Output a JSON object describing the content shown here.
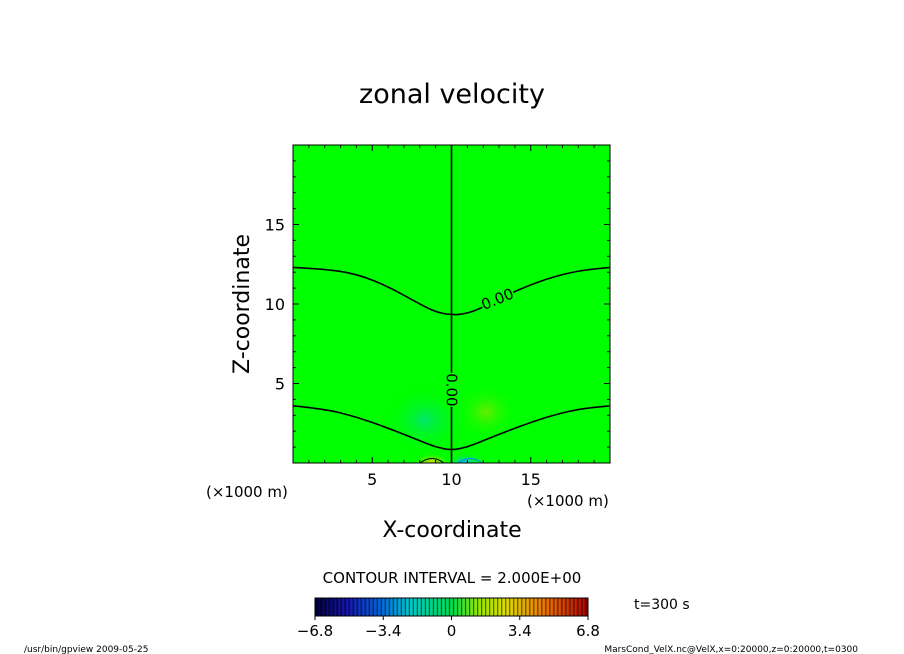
{
  "chart_data": {
    "type": "contour",
    "title": "zonal velocity",
    "xlabel": "X-coordinate",
    "ylabel": "Z-coordinate",
    "x_unit": "(×1000 m)",
    "z_unit": "(×1000 m)",
    "xlim": [
      0,
      20
    ],
    "zlim": [
      0,
      20
    ],
    "x_ticks": [
      5,
      10,
      15
    ],
    "z_ticks": [
      5,
      10,
      15
    ],
    "x_tick_labels": [
      "5",
      "10",
      "15"
    ],
    "z_tick_labels": [
      "5",
      "10",
      "15"
    ],
    "contour_interval_text": "CONTOUR INTERVAL = 2.000E+00",
    "contour_labels": [
      {
        "text": "0.00",
        "x": 12.9,
        "z": 10.3,
        "angle": -22
      },
      {
        "text": "0.00",
        "x": 10.0,
        "z": 4.6,
        "angle": 90
      }
    ],
    "contours": [
      {
        "level": 0,
        "points": [
          [
            0,
            12.3
          ],
          [
            2,
            12.2
          ],
          [
            4,
            11.9
          ],
          [
            6,
            11.1
          ],
          [
            8,
            10.0
          ],
          [
            9,
            9.5
          ],
          [
            10,
            9.3
          ],
          [
            11,
            9.4
          ],
          [
            12,
            9.8
          ],
          [
            13,
            10.3
          ],
          [
            14,
            10.8
          ],
          [
            16,
            11.6
          ],
          [
            18,
            12.1
          ],
          [
            20,
            12.3
          ]
        ]
      },
      {
        "level": 0,
        "points": [
          [
            0,
            3.6
          ],
          [
            2,
            3.4
          ],
          [
            4,
            2.9
          ],
          [
            6,
            2.2
          ],
          [
            8,
            1.4
          ],
          [
            9,
            1.0
          ],
          [
            10,
            0.8
          ],
          [
            11,
            1.0
          ],
          [
            12,
            1.4
          ],
          [
            14,
            2.2
          ],
          [
            16,
            2.9
          ],
          [
            18,
            3.4
          ],
          [
            20,
            3.6
          ]
        ]
      },
      {
        "level": 0,
        "points": [
          [
            10,
            0
          ],
          [
            10,
            20
          ]
        ]
      }
    ],
    "colorbar": {
      "min": -6.8,
      "max": 6.8,
      "tick_values": [
        -6.8,
        -3.4,
        0,
        3.4,
        6.8
      ],
      "tick_labels": [
        "−6.8",
        "−3.4",
        "0",
        "3.4",
        "6.8"
      ]
    },
    "time_label": "t=300 s"
  },
  "footer": {
    "left": "/usr/bin/gpview 2009-05-25",
    "right": "MarsCond_VelX.nc@VelX,x=0:20000,z=0:20000,t=0300"
  },
  "colors": {
    "field_background": "#00ff00",
    "contour_line": "#000000"
  }
}
